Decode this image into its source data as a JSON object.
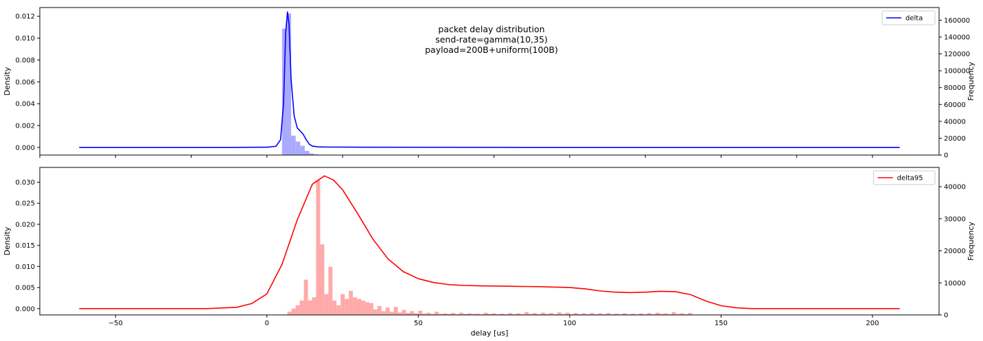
{
  "chart_data": [
    {
      "type": "line+histogram",
      "title_lines": [
        "packet delay distribution",
        "send-rate=gamma(10,35)",
        "payload=200B+uniform(100B)"
      ],
      "xlabel": "",
      "ylabel_left": "Density",
      "ylabel_right": "Frequency",
      "xlim": [
        -75,
        222
      ],
      "ylim_left": [
        -0.0007,
        0.0128
      ],
      "ylim_right": [
        0,
        175000
      ],
      "x_ticks": [
        -50,
        0,
        50,
        100,
        150,
        200
      ],
      "show_x_tick_labels": false,
      "y_ticks_left": [
        0.0,
        0.002,
        0.004,
        0.006,
        0.008,
        0.01,
        0.012
      ],
      "y_tick_labels_left": [
        "0.000",
        "0.002",
        "0.004",
        "0.006",
        "0.008",
        "0.010",
        "0.012"
      ],
      "y_ticks_right": [
        0,
        20000,
        40000,
        60000,
        80000,
        100000,
        120000,
        140000,
        160000
      ],
      "y_tick_labels_right": [
        "0",
        "20000",
        "40000",
        "60000",
        "80000",
        "100000",
        "120000",
        "140000",
        "160000"
      ],
      "legend": {
        "label": "delta",
        "color": "#0000ff",
        "position": "top-right"
      },
      "kde": {
        "name": "delta",
        "color": "#0000ff",
        "x": [
          -62,
          -10,
          0,
          3,
          4.5,
          5.5,
          6.2,
          6.8,
          7.3,
          8,
          9,
          10,
          11,
          12,
          13,
          14,
          15,
          17,
          20,
          30,
          60,
          100,
          150,
          209
        ],
        "y": [
          0.0,
          0.0,
          2e-05,
          0.0001,
          0.0007,
          0.004,
          0.0105,
          0.0124,
          0.0113,
          0.0062,
          0.0029,
          0.0018,
          0.0015,
          0.0012,
          0.0007,
          0.0003,
          0.00012,
          5e-05,
          3e-05,
          2e-05,
          1e-05,
          0.0,
          0.0,
          0.0
        ]
      },
      "histogram": {
        "color": "#aaaaff",
        "bin_width": 1.5,
        "bin_starts": [
          5,
          6.5,
          8,
          9.5,
          11,
          12.5,
          14,
          15.5,
          17
        ],
        "counts": [
          150000,
          168000,
          23000,
          16000,
          11000,
          5000,
          2000,
          800,
          300
        ]
      }
    },
    {
      "type": "line+histogram",
      "xlabel": "delay [us]",
      "ylabel_left": "Density",
      "ylabel_right": "Frequency",
      "xlim": [
        -75,
        222
      ],
      "ylim_left": [
        -0.0015,
        0.0335
      ],
      "ylim_right": [
        0,
        46000
      ],
      "x_ticks": [
        -50,
        0,
        50,
        100,
        150,
        200
      ],
      "x_tick_labels": [
        "−50",
        "0",
        "50",
        "100",
        "150",
        "200"
      ],
      "show_x_tick_labels": true,
      "y_ticks_left": [
        0.0,
        0.005,
        0.01,
        0.015,
        0.02,
        0.025,
        0.03
      ],
      "y_tick_labels_left": [
        "0.000",
        "0.005",
        "0.010",
        "0.015",
        "0.020",
        "0.025",
        "0.030"
      ],
      "y_ticks_right": [
        0,
        10000,
        20000,
        30000,
        40000
      ],
      "y_tick_labels_right": [
        "0",
        "10000",
        "20000",
        "30000",
        "40000"
      ],
      "legend": {
        "label": "delta95",
        "color": "#ff0000",
        "position": "top-right"
      },
      "kde": {
        "name": "delta95",
        "color": "#ff0000",
        "x": [
          -62,
          -20,
          -10,
          -5,
          0,
          5,
          10,
          15,
          19,
          22,
          25,
          30,
          35,
          40,
          45,
          50,
          55,
          60,
          65,
          70,
          80,
          90,
          100,
          105,
          110,
          115,
          120,
          125,
          130,
          135,
          140,
          145,
          150,
          155,
          160,
          170,
          209
        ],
        "y": [
          0.0,
          0.0,
          0.0003,
          0.0012,
          0.0035,
          0.0105,
          0.021,
          0.0295,
          0.0315,
          0.0305,
          0.0282,
          0.0225,
          0.0165,
          0.0118,
          0.0088,
          0.0071,
          0.0062,
          0.0057,
          0.0055,
          0.0054,
          0.0053,
          0.0052,
          0.005,
          0.0047,
          0.0042,
          0.0039,
          0.0038,
          0.0039,
          0.0041,
          0.004,
          0.0033,
          0.0018,
          0.0007,
          0.0002,
          0.0,
          0.0,
          0.0
        ]
      },
      "histogram": {
        "color": "#ffaaaa",
        "bin_width": 1.35,
        "bin_starts": [
          6.8,
          8.15,
          9.5,
          10.85,
          12.2,
          13.55,
          14.9,
          16.25,
          17.6,
          18.95,
          20.3,
          21.65,
          23,
          24.35,
          25.7,
          27.05,
          28.4,
          29.75,
          31.1,
          32.45,
          33.8,
          35.15,
          36.5,
          37.85,
          39.2,
          40.55,
          41.9,
          43.25,
          44.6,
          45.95,
          47.3,
          48.65,
          50,
          51.35,
          52.7,
          54.05,
          55.4,
          56.75,
          58.1,
          59.45,
          60.8,
          62.15,
          63.5,
          64.85,
          66.2,
          67.55,
          68.9,
          70.25,
          71.6,
          72.95,
          74.3,
          75.65,
          77,
          78.35,
          79.7,
          81.05,
          82.4,
          83.75,
          85.1,
          86.45,
          87.8,
          89.15,
          90.5,
          91.85,
          93.2,
          94.55,
          95.9,
          97.25,
          98.6,
          99.95,
          101.3,
          102.65,
          104,
          105.35,
          106.7,
          108.05,
          109.4,
          110.75,
          112.1,
          113.45,
          114.8,
          116.15,
          117.5,
          118.85,
          120.2,
          121.55,
          122.9,
          124.25,
          125.6,
          126.95,
          128.3,
          129.65,
          131,
          132.35,
          133.7,
          135.05,
          136.4,
          137.75,
          139.1
        ],
        "counts": [
          1000,
          2000,
          3000,
          4500,
          11000,
          4500,
          5500,
          42000,
          22000,
          6500,
          15000,
          4500,
          3000,
          6500,
          5000,
          7500,
          5500,
          5000,
          4500,
          4000,
          3700,
          1700,
          2800,
          1200,
          2300,
          1000,
          2500,
          800,
          1600,
          600,
          1200,
          500,
          1300,
          400,
          700,
          300,
          1000,
          300,
          500,
          300,
          600,
          200,
          700,
          300,
          500,
          300,
          400,
          200,
          700,
          300,
          500,
          200,
          400,
          200,
          600,
          200,
          500,
          200,
          900,
          300,
          600,
          200,
          700,
          300,
          600,
          200,
          800,
          300,
          700,
          200,
          600,
          200,
          500,
          200,
          600,
          200,
          500,
          200,
          600,
          200,
          400,
          200,
          500,
          200,
          400,
          200,
          500,
          200,
          600,
          200,
          700,
          300,
          500,
          200,
          900,
          300,
          500,
          200,
          600
        ]
      }
    }
  ]
}
